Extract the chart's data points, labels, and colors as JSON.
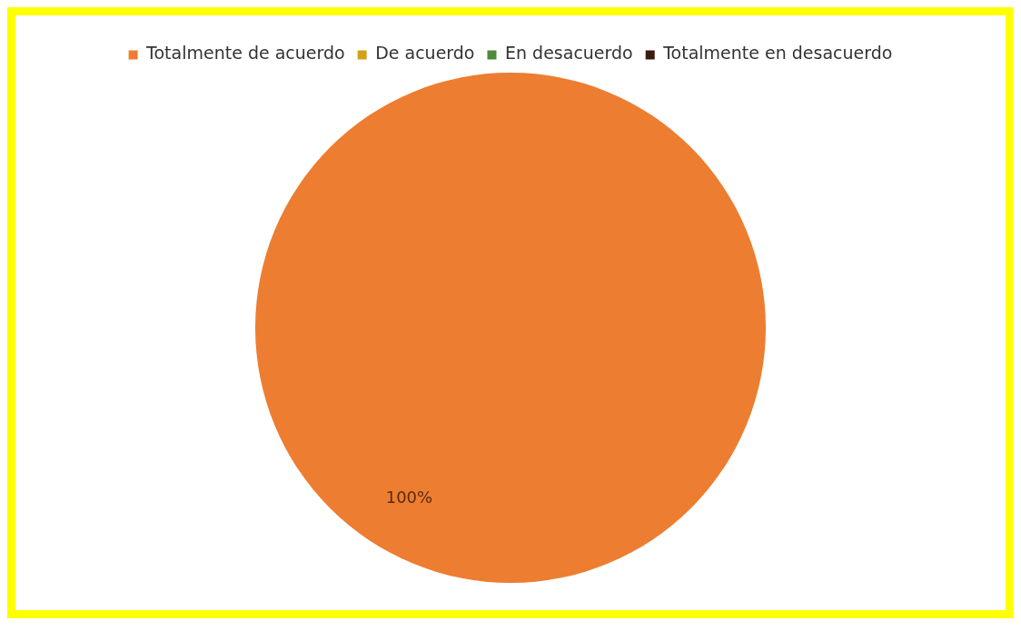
{
  "chart_data": {
    "type": "pie",
    "categories": [
      "Totalmente de acuerdo",
      "De acuerdo",
      "En desacuerdo",
      "Totalmente en desacuerdo"
    ],
    "values": [
      100,
      0,
      0,
      0
    ],
    "colors": [
      "#ed7d31",
      "#d4a017",
      "#4e8a3a",
      "#3d1a10"
    ],
    "value_labels": [
      "100%",
      null,
      null,
      null
    ],
    "legend": "top"
  }
}
